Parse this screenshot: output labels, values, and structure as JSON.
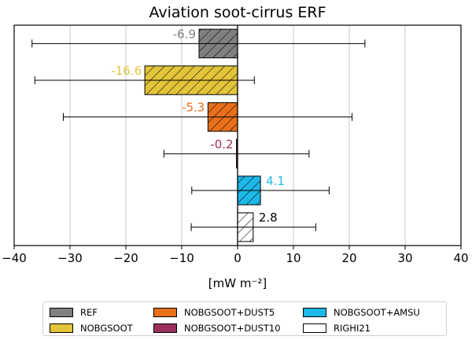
{
  "chart_data": {
    "type": "bar",
    "orientation": "horizontal",
    "title": "Aviation soot-cirrus ERF",
    "xlabel": "[mW m⁻²]",
    "ylabel": "",
    "xlim": [
      -40,
      40
    ],
    "xticks": [
      -40,
      -30,
      -20,
      -10,
      0,
      10,
      20,
      30,
      40
    ],
    "xtick_labels": [
      "−40",
      "−30",
      "−20",
      "−10",
      "0",
      "10",
      "20",
      "30",
      "40"
    ],
    "grid": "vertical",
    "hatch": "diagonal",
    "legend_position": "bottom",
    "series": [
      {
        "name": "REF",
        "value": -6.9,
        "label": "-6.9",
        "err_low": -36.8,
        "err_high": 22.8,
        "color": "#808080",
        "label_color": "#808080"
      },
      {
        "name": "NOBGSOOT",
        "value": -16.6,
        "label": "-16.6",
        "err_low": -36.3,
        "err_high": 3.0,
        "color": "#e3c43a",
        "label_color": "#e3c43a"
      },
      {
        "name": "NOBGSOOT+DUST5",
        "value": -5.3,
        "label": "-5.3",
        "err_low": -31.2,
        "err_high": 20.5,
        "color": "#e8701a",
        "label_color": "#e8701a"
      },
      {
        "name": "NOBGSOOT+DUST10",
        "value": -0.2,
        "label": "-0.2",
        "err_low": -13.2,
        "err_high": 12.8,
        "color": "#9b2f5a",
        "label_color": "#9b2f5a"
      },
      {
        "name": "NOBGSOOT+AMSU",
        "value": 4.1,
        "label": "4.1",
        "err_low": -8.2,
        "err_high": 16.4,
        "color": "#1cb8e8",
        "label_color": "#1cb8e8"
      },
      {
        "name": "RIGHI21",
        "value": 2.8,
        "label": "2.8",
        "err_low": -8.3,
        "err_high": 14.0,
        "color": "#ffffff",
        "label_color": "#000000"
      }
    ]
  }
}
